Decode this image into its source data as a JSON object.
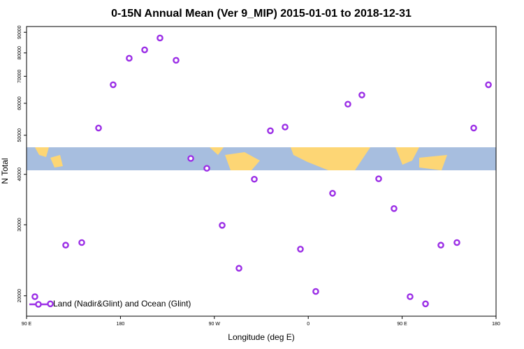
{
  "chart_data": {
    "type": "scatter",
    "title": "0-15N Annual Mean (Ver 9_MIP)   2015-01-01 to 2018-12-31",
    "x_label": "Longitude (deg E)",
    "y_label": "N Total",
    "x": [
      98,
      112.8,
      127.5,
      142.9,
      159,
      173,
      188.4,
      203.2,
      217.9,
      233.3,
      247.4,
      262.8,
      277.5,
      293.6,
      308.3,
      323.7,
      337.8,
      352.5,
      367.2,
      383.3,
      398,
      411.4,
      427.5,
      442.2,
      457.6,
      472.4,
      487.1,
      502.5,
      518.6,
      532.7
    ],
    "series": [
      {
        "name": "Land (Nadir&Glint) and Ocean (Glint)",
        "color": "#9b2ee6",
        "values": [
          19900,
          19100,
          26700,
          27100,
          52100,
          66700,
          77600,
          81400,
          87100,
          76700,
          43800,
          41400,
          29900,
          23400,
          38900,
          51300,
          52400,
          26100,
          20500,
          35900,
          59700,
          62900,
          39000,
          32900,
          19900,
          19100,
          26700,
          27100,
          52100,
          66700
        ]
      }
    ],
    "xlim": [
      90,
      540
    ],
    "xticks": [
      {
        "value": 90,
        "label": "90 E"
      },
      180,
      {
        "value": 270,
        "label": "90 W"
      },
      {
        "value": 360,
        "label": "0"
      },
      {
        "value": 450,
        "label": "90 E"
      },
      {
        "value": 540,
        "label": "180"
      }
    ],
    "ylim": [
      17800,
      93000
    ],
    "ylog": true,
    "yticks": [
      20000,
      30000,
      40000,
      50000,
      60000,
      70000,
      80000,
      90000
    ],
    "legend": "lower left"
  }
}
